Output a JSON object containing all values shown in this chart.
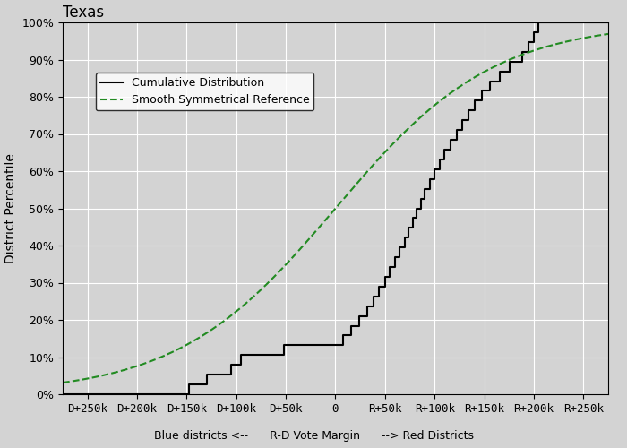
{
  "title": "Texas",
  "ylabel": "District Percentile",
  "xlabel_parts": [
    "Blue districts <--",
    "R-D Vote Margin",
    "--> Red Districts"
  ],
  "bg_color": "#d3d3d3",
  "step_color": "#000000",
  "ref_color": "#228B22",
  "xtick_labels": [
    "D+250k",
    "D+200k",
    "D+150k",
    "D+100k",
    "D+50k",
    "0",
    "R+50k",
    "R+100k",
    "R+150k",
    "R+200k",
    "R+250k"
  ],
  "xtick_values": [
    -250000,
    -200000,
    -150000,
    -100000,
    -50000,
    0,
    50000,
    100000,
    150000,
    200000,
    250000
  ],
  "xlim": [
    -275000,
    275000
  ],
  "ylim": [
    0,
    1.0
  ],
  "ytick_labels": [
    "0%",
    "10%",
    "20%",
    "30%",
    "40%",
    "50%",
    "60%",
    "70%",
    "80%",
    "90%",
    "100%"
  ],
  "ytick_values": [
    0,
    0.1,
    0.2,
    0.3,
    0.4,
    0.5,
    0.6,
    0.7,
    0.8,
    0.9,
    1.0
  ],
  "legend_labels": [
    "Cumulative Distribution",
    "Smooth Symmetrical Reference"
  ],
  "district_margins": [
    -148000,
    -130000,
    -105000,
    -95000,
    -52000,
    8000,
    16000,
    24000,
    32000,
    38000,
    44000,
    50000,
    55000,
    60000,
    65000,
    70000,
    74000,
    78000,
    82000,
    86000,
    90000,
    95000,
    100000,
    105000,
    110000,
    116000,
    122000,
    128000,
    134000,
    140000,
    148000,
    156000,
    166000,
    176000,
    188000,
    195000,
    200000,
    205000
  ],
  "sigmoid_scale": 80000
}
